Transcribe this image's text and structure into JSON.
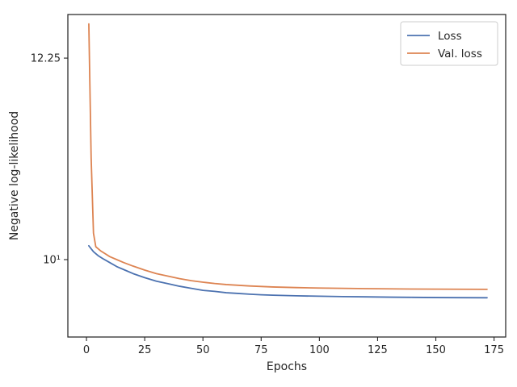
{
  "chart_data": {
    "type": "line",
    "title": "",
    "xlabel": "Epochs",
    "ylabel": "Negative log-likelihood",
    "y_scale": "log",
    "xlim": [
      -8,
      180
    ],
    "ylim": [
      9.25,
      12.8
    ],
    "grid": false,
    "legend_position": "top-right",
    "x_ticks": [
      0,
      25,
      50,
      75,
      100,
      125,
      150,
      175
    ],
    "x_tick_labels": [
      "0",
      "25",
      "50",
      "75",
      "100",
      "125",
      "150",
      "175"
    ],
    "y_ticks": [
      10,
      12.25
    ],
    "y_tick_labels": [
      "10¹",
      "12.25"
    ],
    "series": [
      {
        "name": "Loss",
        "color": "#4c72b0",
        "points": [
          [
            1,
            10.14
          ],
          [
            3,
            10.08
          ],
          [
            5,
            10.04
          ],
          [
            7,
            10.01
          ],
          [
            10,
            9.97
          ],
          [
            13,
            9.93
          ],
          [
            16,
            9.9
          ],
          [
            20,
            9.86
          ],
          [
            25,
            9.82
          ],
          [
            30,
            9.785
          ],
          [
            35,
            9.76
          ],
          [
            40,
            9.735
          ],
          [
            45,
            9.715
          ],
          [
            50,
            9.695
          ],
          [
            55,
            9.685
          ],
          [
            60,
            9.672
          ],
          [
            65,
            9.665
          ],
          [
            70,
            9.658
          ],
          [
            75,
            9.652
          ],
          [
            80,
            9.648
          ],
          [
            85,
            9.645
          ],
          [
            90,
            9.642
          ],
          [
            100,
            9.638
          ],
          [
            110,
            9.634
          ],
          [
            120,
            9.632
          ],
          [
            130,
            9.629
          ],
          [
            140,
            9.627
          ],
          [
            150,
            9.625
          ],
          [
            160,
            9.624
          ],
          [
            172,
            9.623
          ]
        ]
      },
      {
        "name": "Val. loss",
        "color": "#dd8452",
        "points": [
          [
            1,
            12.68
          ],
          [
            2,
            11.08
          ],
          [
            3,
            10.27
          ],
          [
            4,
            10.13
          ],
          [
            6,
            10.09
          ],
          [
            8,
            10.06
          ],
          [
            10,
            10.03
          ],
          [
            13,
            10.0
          ],
          [
            16,
            9.97
          ],
          [
            20,
            9.935
          ],
          [
            25,
            9.895
          ],
          [
            30,
            9.86
          ],
          [
            35,
            9.835
          ],
          [
            40,
            9.81
          ],
          [
            45,
            9.79
          ],
          [
            50,
            9.775
          ],
          [
            55,
            9.762
          ],
          [
            60,
            9.752
          ],
          [
            65,
            9.745
          ],
          [
            70,
            9.738
          ],
          [
            75,
            9.733
          ],
          [
            80,
            9.728
          ],
          [
            85,
            9.725
          ],
          [
            90,
            9.722
          ],
          [
            100,
            9.718
          ],
          [
            110,
            9.715
          ],
          [
            120,
            9.712
          ],
          [
            130,
            9.71
          ],
          [
            140,
            9.708
          ],
          [
            150,
            9.707
          ],
          [
            160,
            9.706
          ],
          [
            172,
            9.705
          ]
        ]
      }
    ]
  }
}
